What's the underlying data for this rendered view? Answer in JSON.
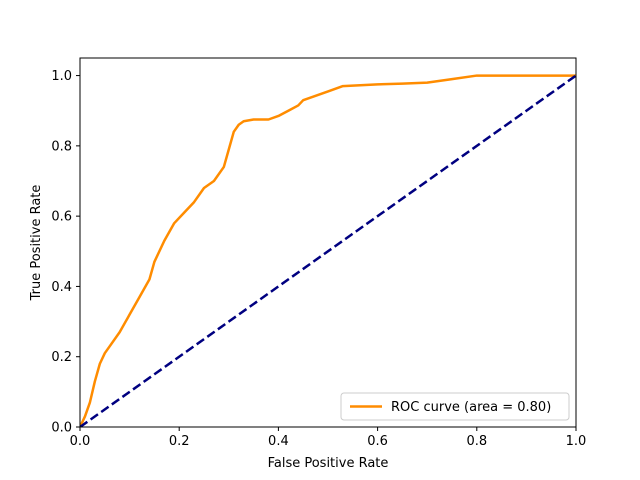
{
  "chart_data": {
    "type": "line",
    "title": "",
    "xlabel": "False Positive Rate",
    "ylabel": "True Positive Rate",
    "xlim": [
      0.0,
      1.0
    ],
    "ylim": [
      0.0,
      1.05
    ],
    "x_ticks": [
      "0.0",
      "0.2",
      "0.4",
      "0.6",
      "0.8",
      "1.0"
    ],
    "y_ticks": [
      "0.0",
      "0.2",
      "0.4",
      "0.6",
      "0.8",
      "1.0"
    ],
    "x_tick_values": [
      0.0,
      0.2,
      0.4,
      0.6,
      0.8,
      1.0
    ],
    "y_tick_values": [
      0.0,
      0.2,
      0.4,
      0.6,
      0.8,
      1.0
    ],
    "grid": false,
    "legend_position": "lower-right",
    "series": [
      {
        "name": "ROC curve (area = 0.80)",
        "color": "#ff8c00",
        "style": "solid",
        "x": [
          0.0,
          0.01,
          0.02,
          0.03,
          0.04,
          0.05,
          0.06,
          0.08,
          0.1,
          0.12,
          0.14,
          0.15,
          0.17,
          0.19,
          0.21,
          0.23,
          0.25,
          0.27,
          0.29,
          0.3,
          0.31,
          0.32,
          0.33,
          0.35,
          0.38,
          0.4,
          0.42,
          0.44,
          0.45,
          0.47,
          0.5,
          0.53,
          0.56,
          0.6,
          0.65,
          0.7,
          0.75,
          0.8,
          0.9,
          1.0
        ],
        "y": [
          0.0,
          0.03,
          0.07,
          0.13,
          0.18,
          0.21,
          0.23,
          0.27,
          0.32,
          0.37,
          0.42,
          0.47,
          0.53,
          0.58,
          0.61,
          0.64,
          0.68,
          0.7,
          0.74,
          0.79,
          0.84,
          0.86,
          0.87,
          0.875,
          0.875,
          0.885,
          0.9,
          0.915,
          0.93,
          0.94,
          0.955,
          0.97,
          0.972,
          0.975,
          0.977,
          0.98,
          0.99,
          1.0,
          1.0,
          1.0
        ]
      },
      {
        "name": "",
        "color": "#000080",
        "style": "dashed",
        "x": [
          0.0,
          1.0
        ],
        "y": [
          0.0,
          1.0
        ]
      }
    ]
  }
}
